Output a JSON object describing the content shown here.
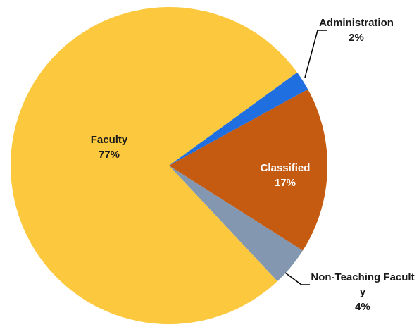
{
  "chart_data": {
    "type": "pie",
    "categories": [
      "Administration",
      "Classified",
      "Non-Teaching Faculty",
      "Faculty"
    ],
    "values": [
      2,
      17,
      4,
      77
    ],
    "value_labels": [
      "2%",
      "17%",
      "4%",
      "77%"
    ],
    "colors": [
      "#1f6fe0",
      "#c55a11",
      "#8497b0",
      "#fcc93e"
    ]
  }
}
